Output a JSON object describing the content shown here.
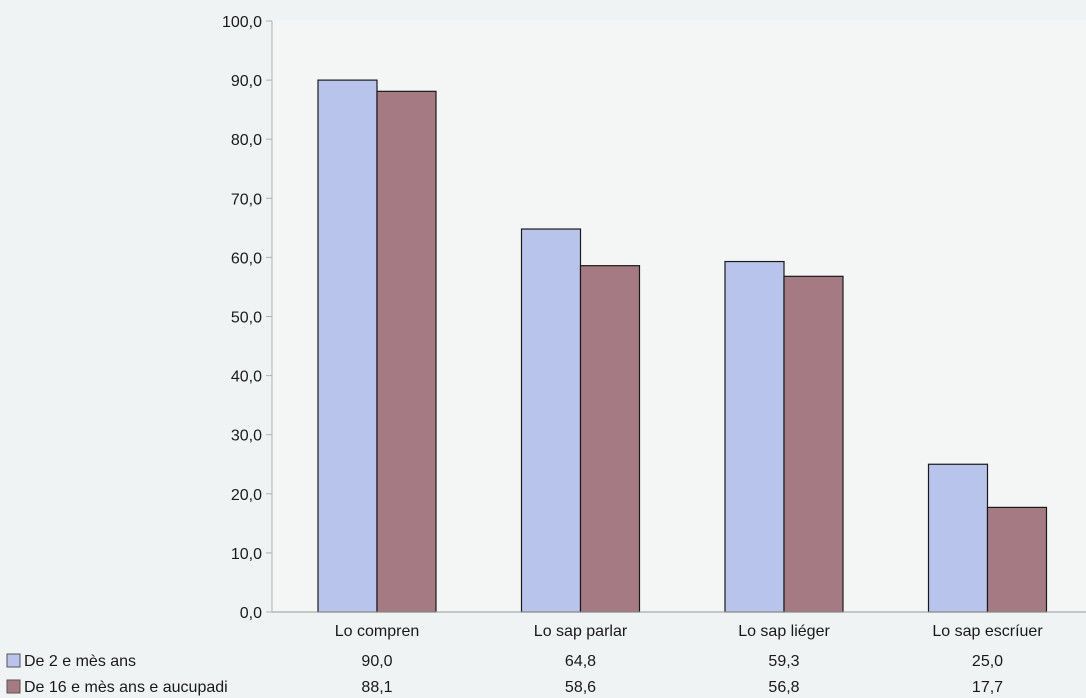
{
  "chart_data": {
    "type": "bar",
    "title": "",
    "xlabel": "",
    "ylabel": "",
    "ylim": [
      0,
      100
    ],
    "yticks": [
      "0,0",
      "10,0",
      "20,0",
      "30,0",
      "40,0",
      "50,0",
      "60,0",
      "70,0",
      "80,0",
      "90,0",
      "100,0"
    ],
    "categories": [
      "Lo compren",
      "Lo sap parlar",
      "Lo sap liéger",
      "Lo sap escríuer"
    ],
    "series": [
      {
        "name": "De 2 e mès ans",
        "color": "#b8c4ec",
        "values": [
          90.0,
          64.8,
          59.3,
          25.0
        ],
        "labels": [
          "90,0",
          "64,8",
          "59,3",
          "25,0"
        ]
      },
      {
        "name": "De 16 e mès ans e aucupadi",
        "color": "#a67a82",
        "values": [
          88.1,
          58.6,
          56.8,
          17.7
        ],
        "labels": [
          "88,1",
          "58,6",
          "56,8",
          "17,7"
        ]
      }
    ],
    "grid": false,
    "legend": "bottom-left, as data-table rows"
  },
  "colors": {
    "plot_background": "#f3f6f5",
    "axis": "#9a9a9a",
    "bar_outline": "#1a1a1a"
  }
}
